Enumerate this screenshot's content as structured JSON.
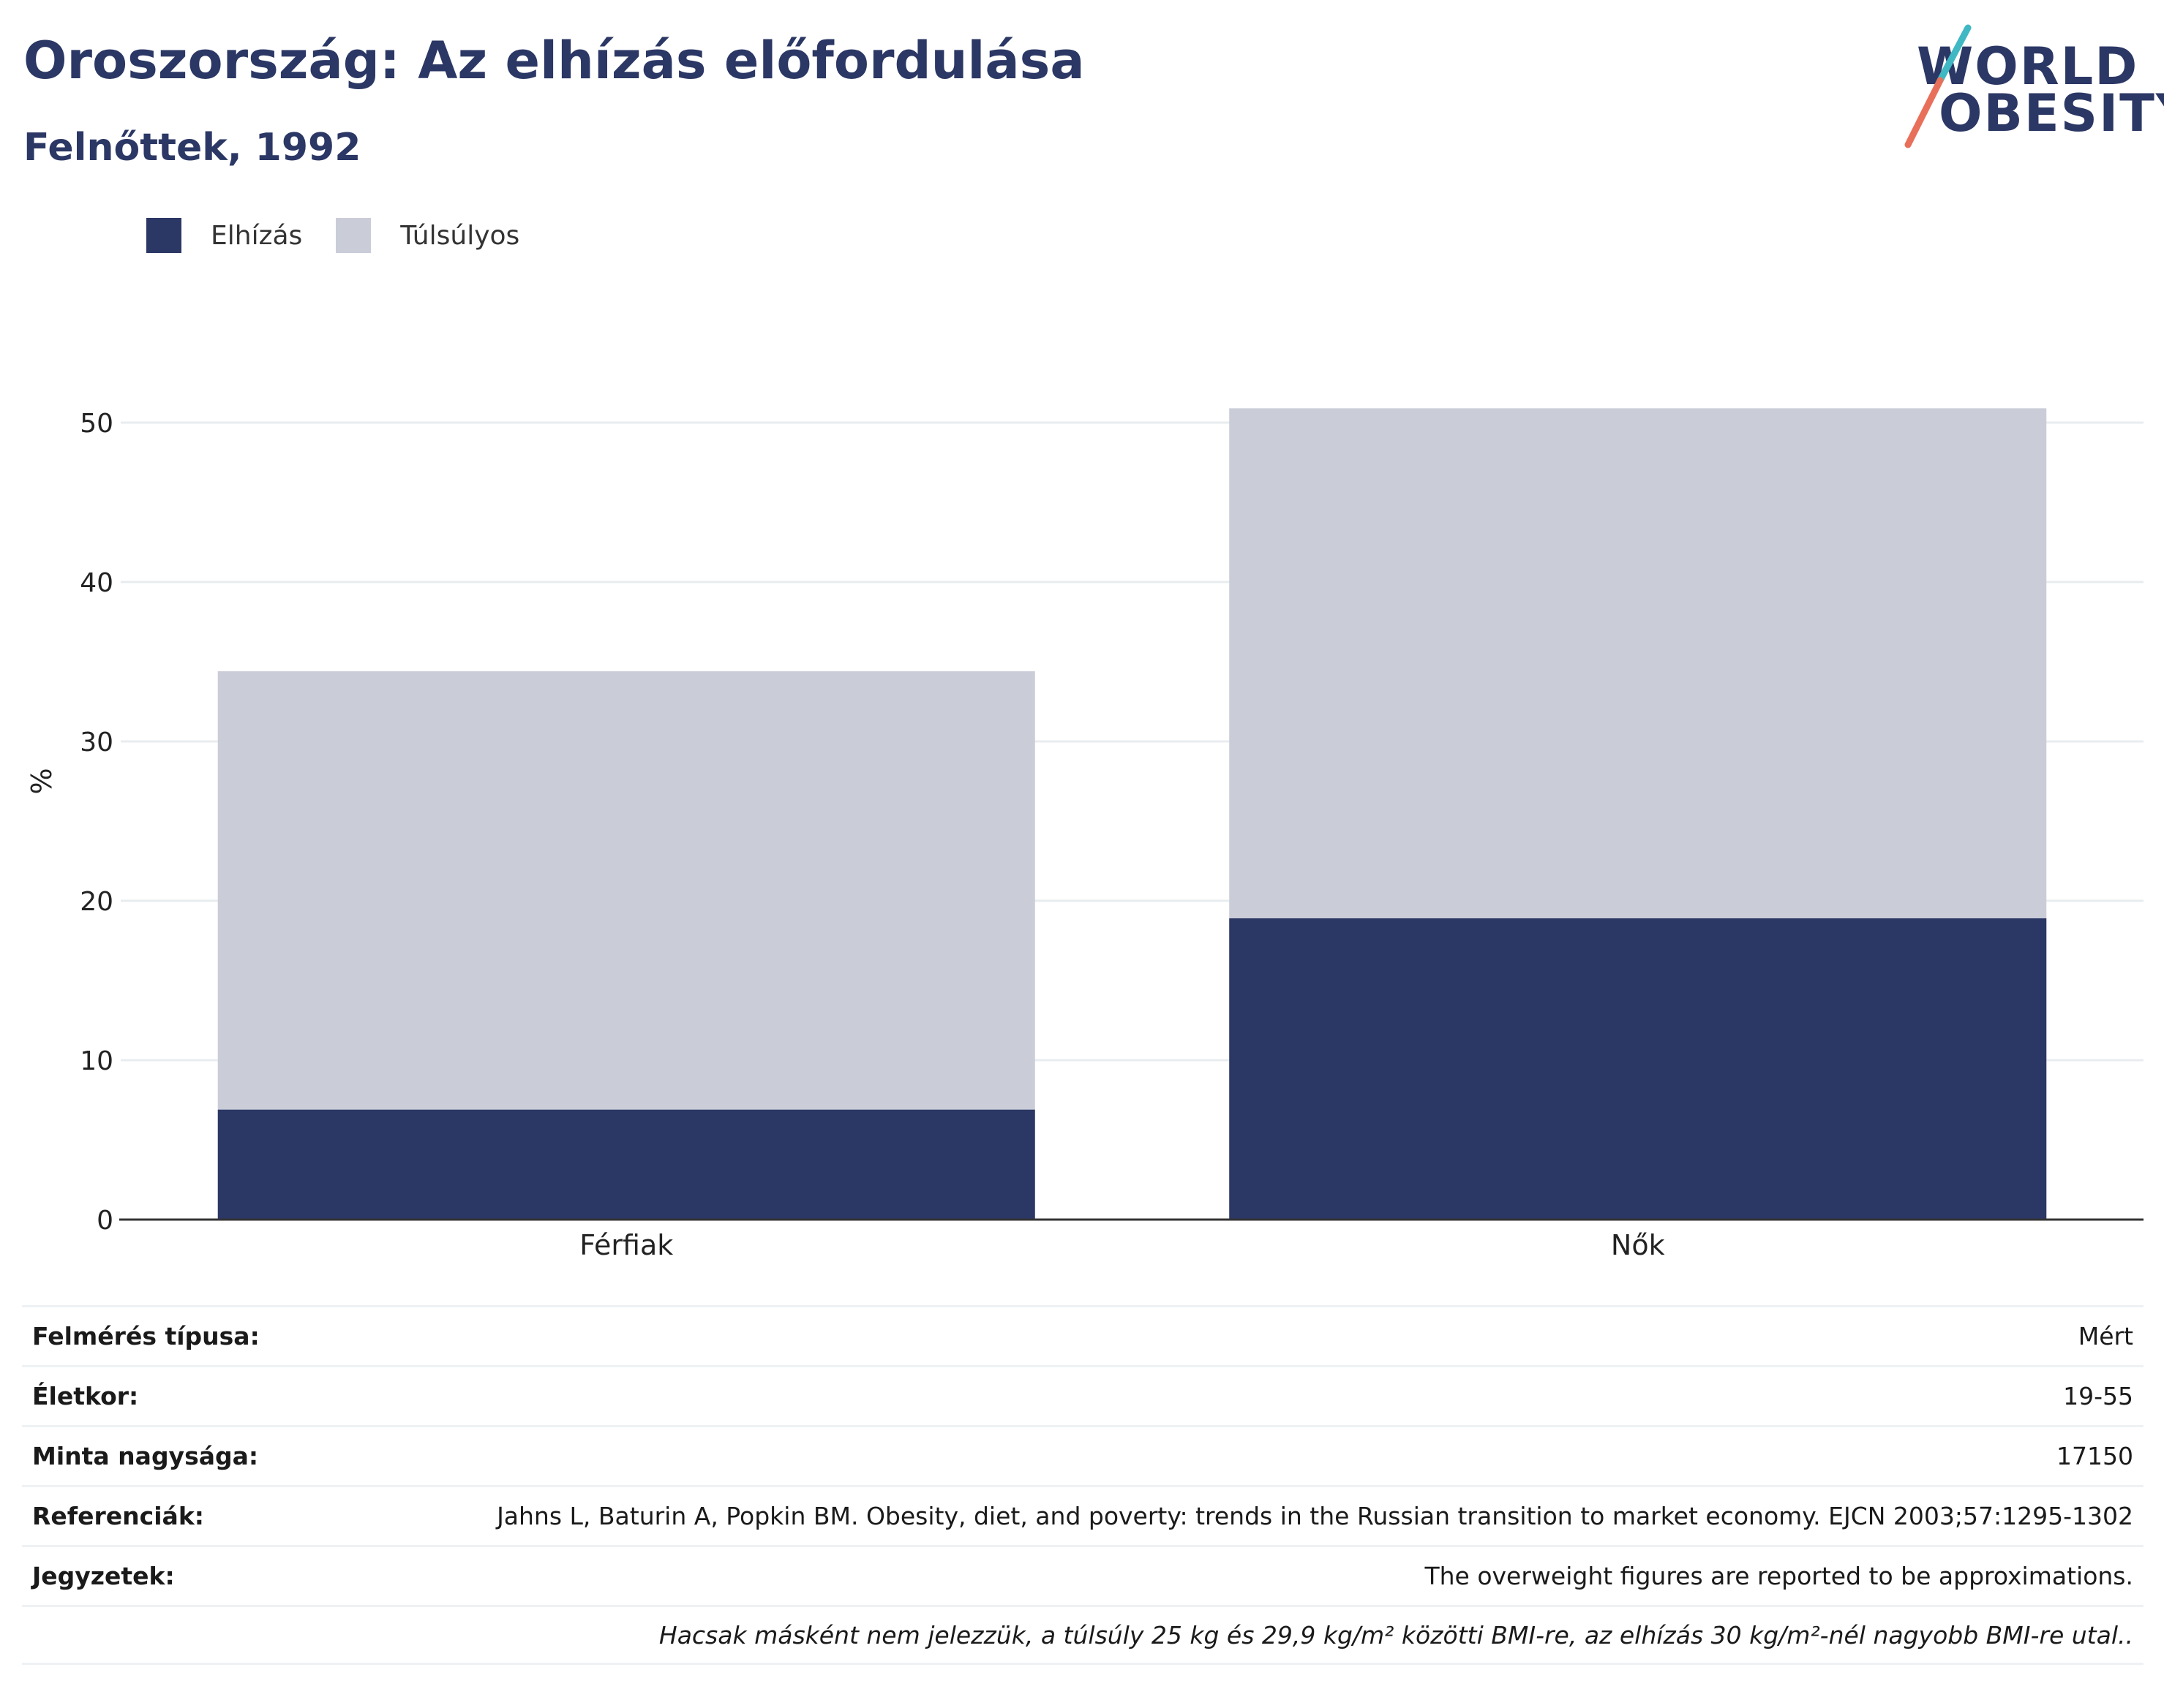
{
  "title": "Oroszország: Az elhízás előfordulása",
  "subtitle": "Felnőttek, 1992",
  "logo": {
    "line1": "WORLD",
    "line2": "OBESITY"
  },
  "colors": {
    "obesity": "#2b3764",
    "overweight": "#cacdd8",
    "text": "#2b3764",
    "grid": "#e8ecef",
    "axis": "#333333"
  },
  "legend": [
    {
      "label": "Elhízás",
      "color": "#2b3764"
    },
    {
      "label": "Túlsúlyos",
      "color": "#cacdd8"
    }
  ],
  "chart_data": {
    "type": "bar",
    "stacked": true,
    "categories": [
      "Férfiak",
      "Nők"
    ],
    "series": [
      {
        "name": "Elhízás",
        "values": [
          6.9,
          18.9
        ]
      },
      {
        "name": "Túlsúlyos",
        "values": [
          27.5,
          32.0
        ]
      }
    ],
    "ylabel": "%",
    "xlabel": "",
    "ylim": [
      0,
      55
    ],
    "yticks": [
      0,
      10,
      20,
      30,
      40,
      50
    ],
    "grid": true,
    "legend_position": "top-left"
  },
  "meta": [
    {
      "key": "Felmérés típusa:",
      "value": "Mért"
    },
    {
      "key": "Életkor:",
      "value": "19-55"
    },
    {
      "key": "Minta nagysága:",
      "value": "17150"
    },
    {
      "key": "Referenciák:",
      "value": "Jahns L, Baturin A, Popkin BM. Obesity, diet, and poverty: trends in the Russian transition to market economy. EJCN 2003;57:1295-1302"
    },
    {
      "key": "Jegyzetek:",
      "value": "The overweight figures are reported to be approximations."
    }
  ],
  "footnote": "Hacsak másként nem jelezzük, a túlsúly 25 kg és 29,9 kg/m² közötti BMI-re, az elhízás 30 kg/m²-nél nagyobb BMI-re utal.."
}
